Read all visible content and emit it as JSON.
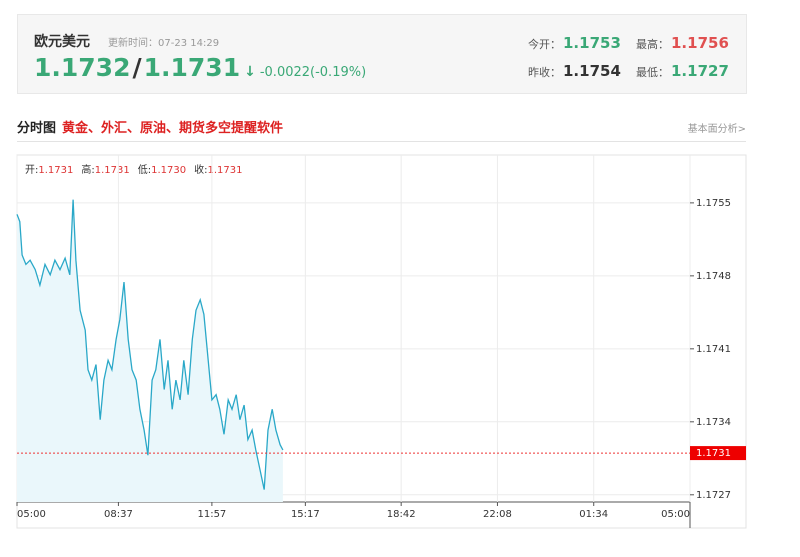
{
  "header": {
    "pair": "欧元美元",
    "updated": "更新时间：07-23 14:29",
    "bid": "1.1732",
    "separator": "/",
    "ask": "1.1731",
    "arrow": "↓",
    "change": "-0.0022(-0.19%)",
    "stats": [
      {
        "label": "今开：",
        "value": "1.1753"
      },
      {
        "label": "最高：",
        "value": "1.1756"
      },
      {
        "label": "昨收：",
        "value": "1.1754"
      },
      {
        "label": "最低：",
        "value": "1.1727"
      }
    ]
  },
  "section": {
    "title": "分时图",
    "promo": "黄金、外汇、原油、期货多空提醒软件",
    "link": "基本面分析>"
  },
  "chart_data": {
    "type": "line",
    "ohlc": [
      {
        "label": "开:",
        "value": "1.1731"
      },
      {
        "label": "高:",
        "value": "1.1731"
      },
      {
        "label": "低:",
        "value": "1.1730"
      },
      {
        "label": "收:",
        "value": "1.1731"
      }
    ],
    "x": [
      0,
      6,
      11,
      19,
      28,
      39,
      49,
      60,
      71,
      81,
      92,
      103,
      113,
      120,
      126,
      135,
      146,
      152,
      160,
      169,
      178,
      186,
      195,
      203,
      212,
      220,
      229,
      238,
      246,
      255,
      263,
      272,
      280,
      289,
      297,
      306,
      315,
      323,
      332,
      340,
      349,
      357,
      366,
      375,
      383,
      392,
      400,
      409,
      417,
      426,
      434,
      443,
      452,
      460,
      469,
      477,
      486,
      494,
      503,
      511,
      520,
      529,
      537,
      546,
      554,
      563,
      569
    ],
    "series": [
      {
        "color": "#2aa8c8",
        "values": [
          1.17539,
          1.17532,
          1.175,
          1.17491,
          1.17495,
          1.17486,
          1.17471,
          1.17491,
          1.17481,
          1.17495,
          1.17486,
          1.17497,
          1.17481,
          1.17553,
          1.17495,
          1.17447,
          1.17428,
          1.1739,
          1.1738,
          1.17395,
          1.17342,
          1.1738,
          1.17399,
          1.1739,
          1.17419,
          1.17438,
          1.17474,
          1.17419,
          1.1739,
          1.1738,
          1.17352,
          1.17332,
          1.17308,
          1.1738,
          1.1739,
          1.17419,
          1.17371,
          1.17399,
          1.17352,
          1.1738,
          1.17361,
          1.17399,
          1.17366,
          1.17419,
          1.17447,
          1.17457,
          1.17443,
          1.17399,
          1.17361,
          1.17366,
          1.17352,
          1.17328,
          1.17361,
          1.17352,
          1.17366,
          1.17342,
          1.17356,
          1.17323,
          1.17332,
          1.17313,
          1.17294,
          1.17275,
          1.17332,
          1.17352,
          1.17332,
          1.17318,
          1.17313
        ]
      }
    ],
    "last": 1.1731,
    "xlim": [
      0,
      1440
    ],
    "xticks": [
      {
        "value": 0,
        "label": "05:00"
      },
      {
        "value": 217,
        "label": "08:37"
      },
      {
        "value": 417,
        "label": "11:57"
      },
      {
        "value": 617,
        "label": "15:17"
      },
      {
        "value": 822,
        "label": "18:42"
      },
      {
        "value": 1028,
        "label": "22:08"
      },
      {
        "value": 1234,
        "label": "01:34"
      },
      {
        "value": 1440,
        "label": "05:00"
      }
    ],
    "ylim": [
      1.17265,
      1.17594
    ],
    "yticks": [
      1.1727,
      1.1734,
      1.1741,
      1.1748,
      1.1755
    ],
    "grid": true
  }
}
